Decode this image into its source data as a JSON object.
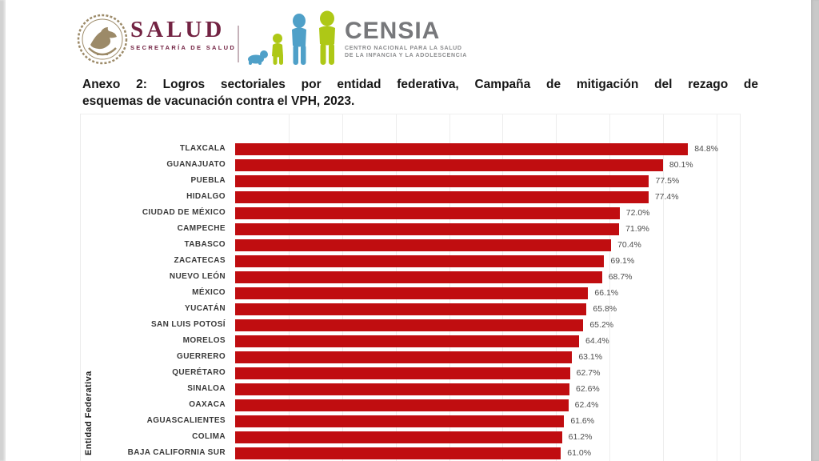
{
  "header": {
    "salud": {
      "wordmark": "SALUD",
      "subtitle": "SECRETARÍA DE SALUD",
      "color": "#732343",
      "seal_icon": "mexico-eagle-seal",
      "seal_color": "#9c8a68"
    },
    "censia": {
      "wordmark": "CENSIA",
      "subtitle_line1": "CENTRO NACIONAL PARA LA SALUD",
      "subtitle_line2": "DE LA INFANCIA Y LA ADOLESCENCIA",
      "text_color": "#77787b",
      "figures_icon": "children-growth-figures",
      "figure_blue": "#4fa0c8",
      "figure_green": "#aec816"
    }
  },
  "title": {
    "line1": "Anexo 2: Logros sectoriales por entidad federativa, Campaña de mitigación del rezago de",
    "line2": "esquemas de vacunación contra el VPH, 2023."
  },
  "chart_data": {
    "type": "bar",
    "orientation": "horizontal",
    "title": "",
    "xlabel": "",
    "ylabel": "Entidad Federativa",
    "xlim": [
      0,
      94.5
    ],
    "gridline_pcts": [
      10,
      20,
      30,
      40,
      50,
      60,
      70,
      80,
      90
    ],
    "grid": true,
    "bar_color": "#c00d10",
    "value_suffix": "%",
    "cropped_bottom": true,
    "categories": [
      "TLAXCALA",
      "GUANAJUATO",
      "PUEBLA",
      "HIDALGO",
      "CIUDAD DE MÉXICO",
      "CAMPECHE",
      "TABASCO",
      "ZACATECAS",
      "NUEVO LEÓN",
      "MÉXICO",
      "YUCATÁN",
      "SAN LUIS POTOSÍ",
      "MORELOS",
      "GUERRERO",
      "QUERÉTARO",
      "SINALOA",
      "OAXACA",
      "AGUASCALIENTES",
      "COLIMA",
      "BAJA CALIFORNIA SUR"
    ],
    "values": [
      84.8,
      80.1,
      77.5,
      77.4,
      72.0,
      71.9,
      70.4,
      69.1,
      68.7,
      66.1,
      65.8,
      65.2,
      64.4,
      63.1,
      62.7,
      62.6,
      62.4,
      61.6,
      61.2,
      61.0
    ],
    "value_labels": [
      "84.8%",
      "80.1%",
      "77.5%",
      "77.4%",
      "72.0%",
      "71.9%",
      "70.4%",
      "69.1%",
      "68.7%",
      "66.1%",
      "65.8%",
      "65.2%",
      "64.4%",
      "63.1%",
      "62.7%",
      "62.6%",
      "62.4%",
      "61.6%",
      "61.2%",
      "61.0%"
    ]
  }
}
